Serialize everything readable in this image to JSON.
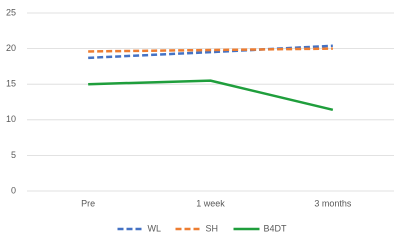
{
  "chart_data": {
    "type": "line",
    "categories": [
      "Pre",
      "1 week",
      "3 months"
    ],
    "series": [
      {
        "name": "WL",
        "color": "#4472c4",
        "dashed": true,
        "values": [
          18.7,
          19.5,
          20.4
        ]
      },
      {
        "name": "SH",
        "color": "#ed7d31",
        "dashed": true,
        "values": [
          19.6,
          19.8,
          20.0
        ]
      },
      {
        "name": "B4DT",
        "color": "#1f9e3c",
        "dashed": false,
        "values": [
          15.0,
          15.5,
          11.4
        ]
      }
    ],
    "ylim": [
      0,
      25
    ],
    "yticks": [
      0,
      5,
      10,
      15,
      20,
      25
    ],
    "grid": true,
    "legend": "bottom"
  }
}
